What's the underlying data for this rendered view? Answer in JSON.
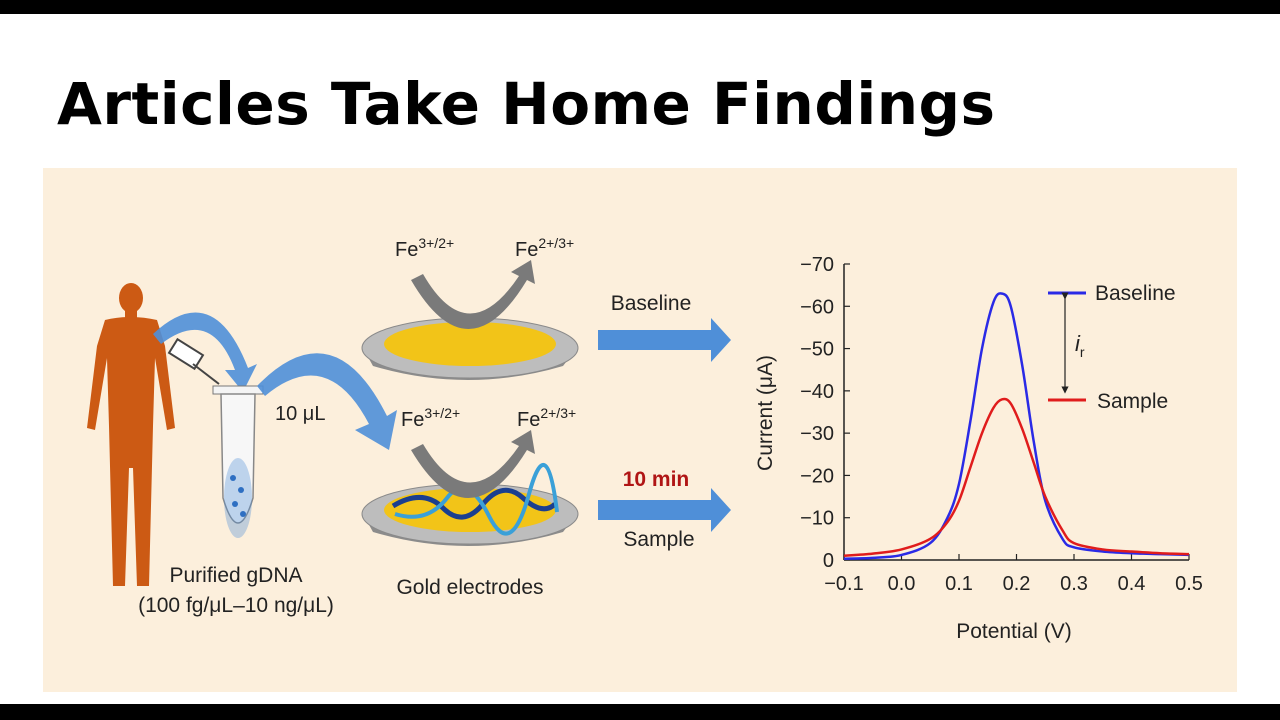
{
  "slide": {
    "title": "Articles Take Home Findings"
  },
  "figure": {
    "person_label": "",
    "sample_volume": "10 μL",
    "tube_label_line1": "Purified gDNA",
    "tube_label_line2": "(100 fg/μL–10 ng/μL)",
    "electrodes_label": "Gold electrodes",
    "baseline_arrow_label": "Baseline",
    "time_label": "10 min",
    "sample_arrow_label": "Sample",
    "redox_top_left": "Fe",
    "redox_top_left_sup": "3+/2+",
    "redox_top_right": "Fe",
    "redox_top_right_sup": "2+/3+",
    "redox_bottom_left": "Fe",
    "redox_bottom_left_sup": "3+/2+",
    "redox_bottom_right": "Fe",
    "redox_bottom_right_sup": "2+/3+",
    "colors": {
      "background": "#fcefdc",
      "person": "#cc5a14",
      "arrow_blue": "#4f8fd8",
      "gold": "#f2c418",
      "time_red": "#b01515"
    }
  },
  "chart_data": {
    "type": "line",
    "xlabel": "Potential (V)",
    "ylabel": "Current (μA)",
    "xlim": [
      -0.1,
      0.5
    ],
    "ylim": [
      0,
      -70
    ],
    "x_ticks": [
      "−0.1",
      "0.0",
      "0.1",
      "0.2",
      "0.3",
      "0.4",
      "0.5"
    ],
    "y_ticks": [
      "0",
      "−10",
      "−20",
      "−30",
      "−40",
      "−50",
      "−60",
      "−70"
    ],
    "legend_position": "top-right",
    "annotation": "i",
    "annotation_sub": "r",
    "series": [
      {
        "name": "Baseline",
        "color": "#2a2ae6",
        "x": [
          -0.1,
          -0.05,
          0.0,
          0.05,
          0.08,
          0.1,
          0.12,
          0.14,
          0.16,
          0.175,
          0.19,
          0.21,
          0.23,
          0.25,
          0.28,
          0.3,
          0.35,
          0.4,
          0.45,
          0.5
        ],
        "y": [
          -0.3,
          -0.5,
          -1.2,
          -4,
          -10,
          -18,
          -33,
          -50,
          -61,
          -63,
          -60,
          -46,
          -28,
          -14,
          -5,
          -3,
          -2,
          -1.6,
          -1.4,
          -1.2
        ]
      },
      {
        "name": "Sample",
        "color": "#e01c1c",
        "x": [
          -0.1,
          -0.05,
          0.0,
          0.05,
          0.08,
          0.1,
          0.12,
          0.14,
          0.16,
          0.175,
          0.19,
          0.21,
          0.23,
          0.25,
          0.28,
          0.3,
          0.35,
          0.4,
          0.45,
          0.5
        ],
        "y": [
          -1,
          -1.5,
          -2.5,
          -5,
          -9,
          -14,
          -22,
          -30,
          -36,
          -38,
          -37,
          -31,
          -23,
          -15,
          -7,
          -4,
          -2.5,
          -2,
          -1.6,
          -1.4
        ]
      }
    ]
  }
}
